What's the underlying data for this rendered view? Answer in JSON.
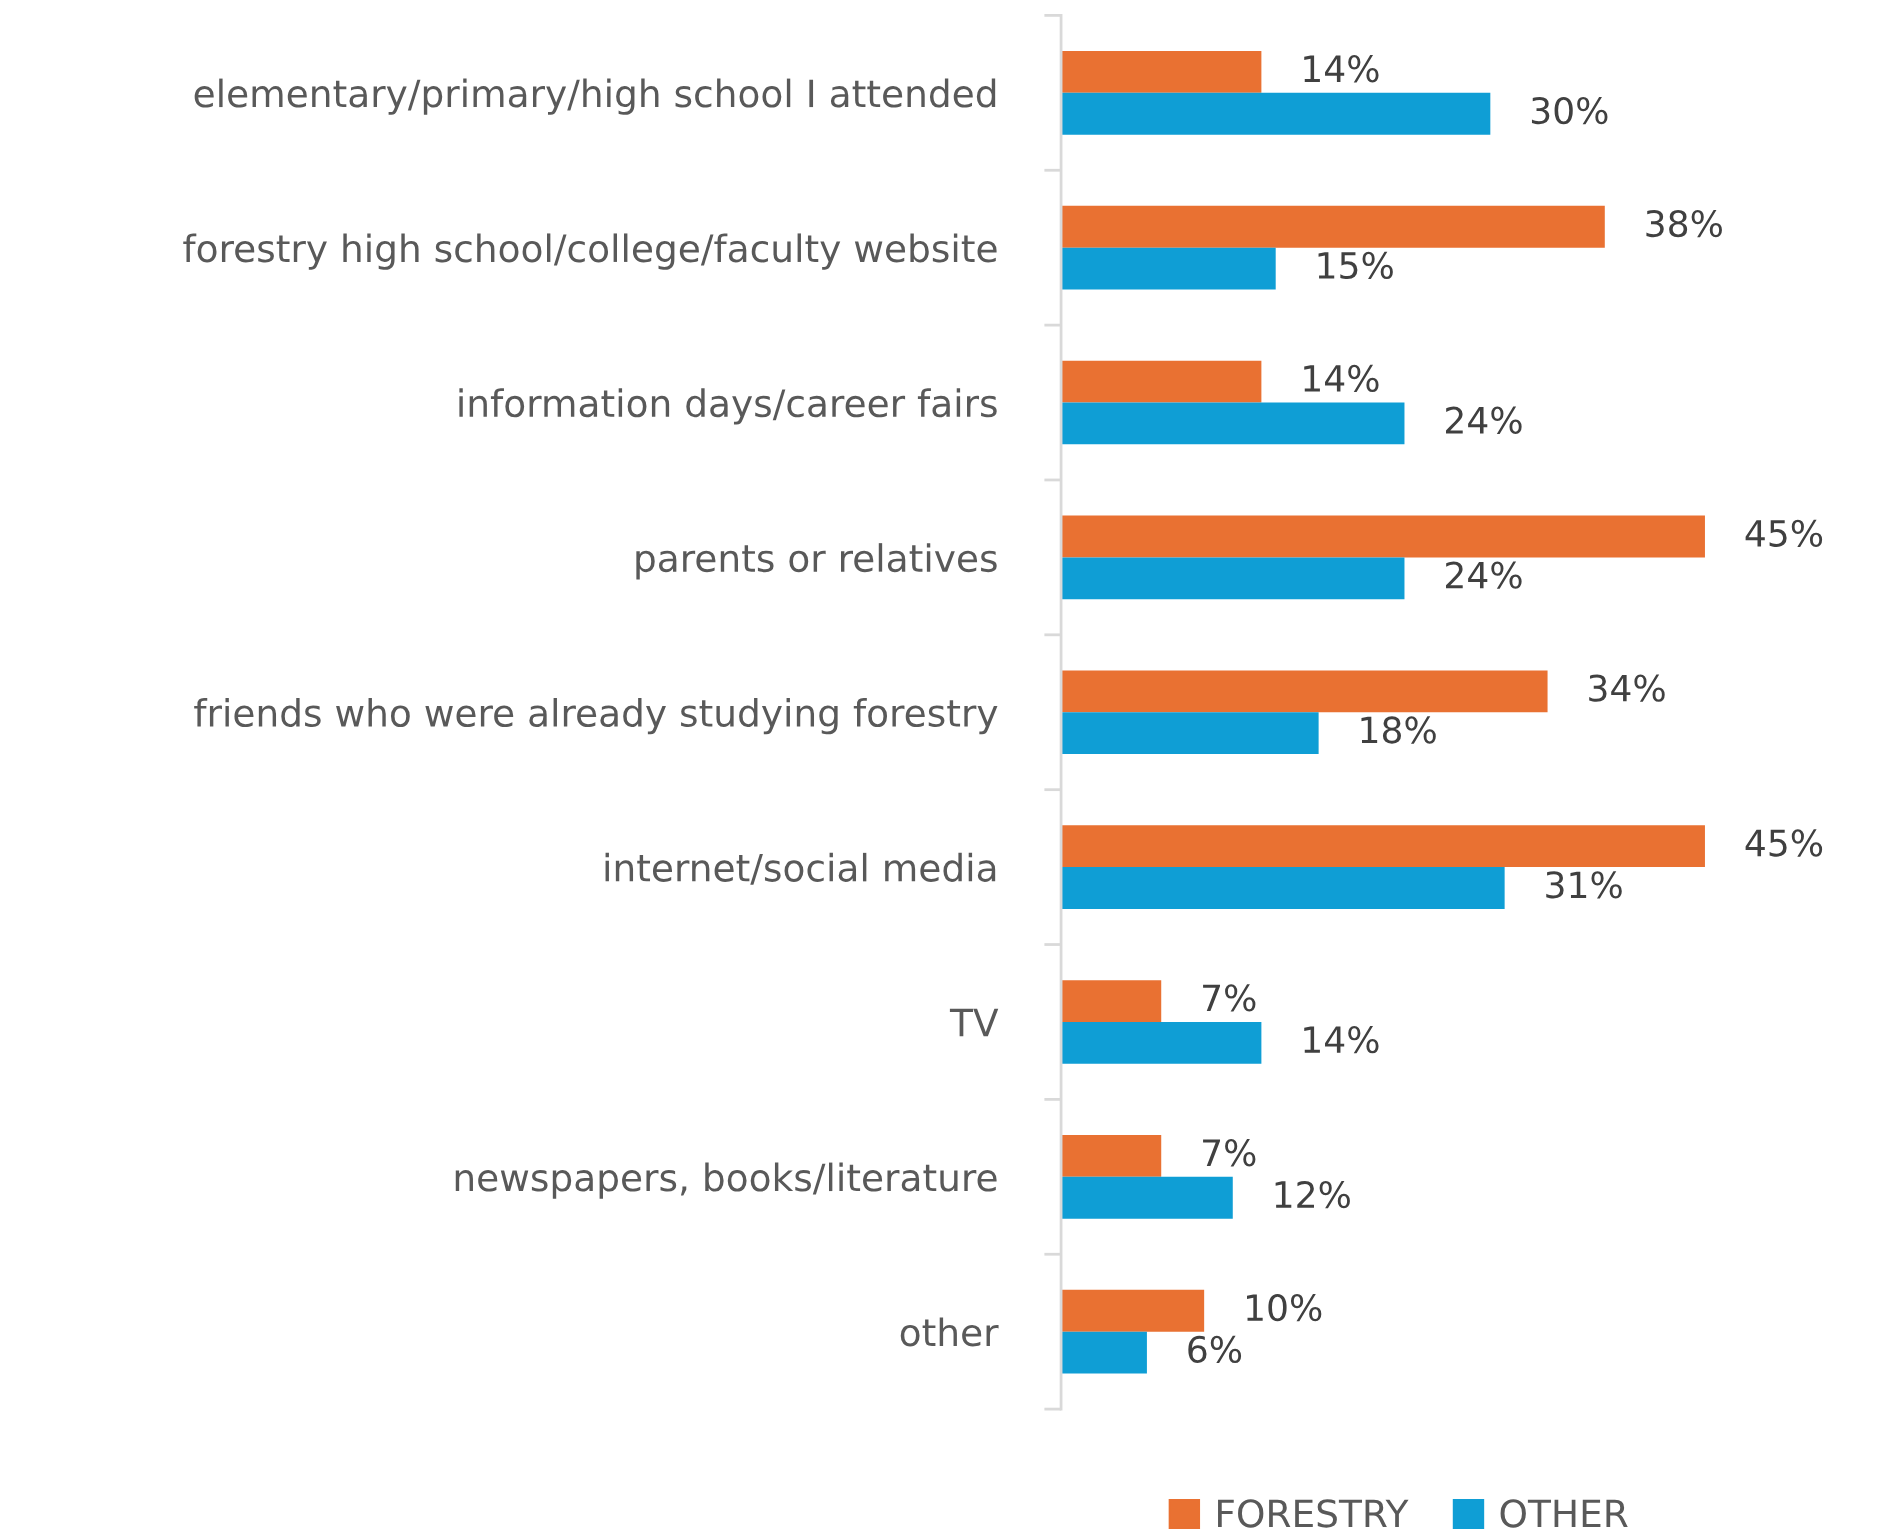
{
  "chart_data": {
    "type": "bar",
    "orientation": "horizontal",
    "tick_labels": "y",
    "legend": "bottom",
    "grid": false,
    "categories": [
      "elementary/primary/high school I attended",
      "forestry high school/college/faculty website",
      "information days/career fairs",
      "parents or relatives",
      "friends who were already studying forestry",
      "internet/social media",
      "TV",
      "newspapers, books/literature",
      "other"
    ],
    "series": [
      {
        "name": "FORESTRY",
        "color": "#e97132",
        "values": [
          14,
          38,
          14,
          45,
          34,
          45,
          7,
          7,
          10
        ],
        "value_labels": [
          "14%",
          "38%",
          "14%",
          "45%",
          "34%",
          "45%",
          "7%",
          "7%",
          "10%"
        ]
      },
      {
        "name": "OTHER",
        "color": "#0f9ed5",
        "values": [
          30,
          15,
          24,
          24,
          18,
          31,
          14,
          12,
          6
        ],
        "value_labels": [
          "30%",
          "15%",
          "24%",
          "24%",
          "18%",
          "31%",
          "14%",
          "12%",
          "6%"
        ]
      }
    ]
  }
}
